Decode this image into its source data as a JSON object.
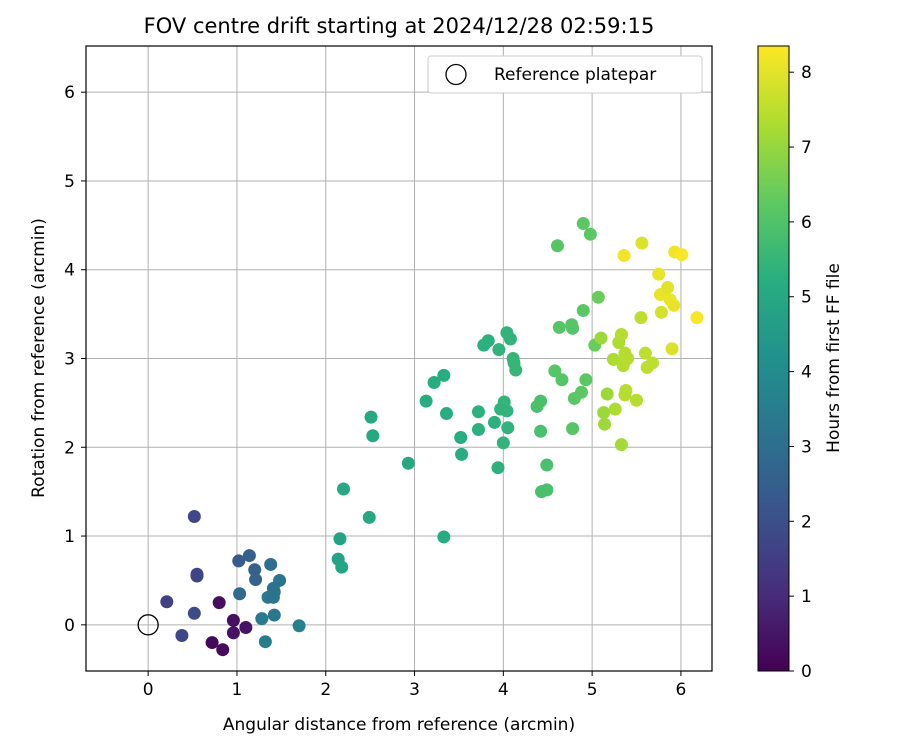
{
  "chart_data": {
    "type": "scatter",
    "title": "FOV centre drift starting at 2024/12/28 02:59:15",
    "xlabel": "Angular distance from reference (arcmin)",
    "ylabel": "Rotation from reference (arcmin)",
    "xlim": [
      -0.7,
      6.35
    ],
    "ylim": [
      -0.52,
      6.52
    ],
    "xticks": [
      "0",
      "1",
      "2",
      "3",
      "4",
      "5",
      "6"
    ],
    "yticks": [
      "0",
      "1",
      "2",
      "3",
      "4",
      "5",
      "6"
    ],
    "grid": true,
    "legend": {
      "position": "top-right",
      "entries": [
        {
          "label": "Reference platepar",
          "marker": "open-circle"
        }
      ]
    },
    "reference_point": {
      "x": 0,
      "y": 0
    },
    "colorbar": {
      "label": "Hours from first FF file",
      "range": [
        0,
        8.35
      ],
      "ticks": [
        "0",
        "1",
        "2",
        "3",
        "4",
        "5",
        "6",
        "7",
        "8"
      ],
      "colormap": "viridis"
    },
    "points": [
      {
        "x": 0.8,
        "y": 0.25,
        "c": 0.3
      },
      {
        "x": 0.96,
        "y": 0.05,
        "c": 0.35
      },
      {
        "x": 0.96,
        "y": -0.09,
        "c": 0.4
      },
      {
        "x": 1.1,
        "y": -0.03,
        "c": 0.45
      },
      {
        "x": 0.72,
        "y": -0.2,
        "c": 0.2
      },
      {
        "x": 0.84,
        "y": -0.28,
        "c": 0.25
      },
      {
        "x": 0.52,
        "y": 1.22,
        "c": 1.8
      },
      {
        "x": 0.55,
        "y": 0.55,
        "c": 1.7
      },
      {
        "x": 0.55,
        "y": 0.57,
        "c": 1.7
      },
      {
        "x": 0.21,
        "y": 0.26,
        "c": 1.6
      },
      {
        "x": 0.52,
        "y": 0.13,
        "c": 1.9
      },
      {
        "x": 0.38,
        "y": -0.12,
        "c": 1.8
      },
      {
        "x": 1.02,
        "y": 0.72,
        "c": 2.4
      },
      {
        "x": 1.14,
        "y": 0.78,
        "c": 2.5
      },
      {
        "x": 1.2,
        "y": 0.62,
        "c": 2.6
      },
      {
        "x": 1.21,
        "y": 0.51,
        "c": 2.6
      },
      {
        "x": 1.03,
        "y": 0.35,
        "c": 2.9
      },
      {
        "x": 1.38,
        "y": 0.68,
        "c": 3.0
      },
      {
        "x": 1.48,
        "y": 0.5,
        "c": 3.2
      },
      {
        "x": 1.41,
        "y": 0.41,
        "c": 3.1
      },
      {
        "x": 1.42,
        "y": 0.37,
        "c": 3.2
      },
      {
        "x": 1.35,
        "y": 0.31,
        "c": 3.3
      },
      {
        "x": 1.41,
        "y": 0.31,
        "c": 3.2
      },
      {
        "x": 1.28,
        "y": 0.07,
        "c": 3.4
      },
      {
        "x": 1.42,
        "y": 0.11,
        "c": 3.3
      },
      {
        "x": 1.32,
        "y": -0.19,
        "c": 3.5
      },
      {
        "x": 1.7,
        "y": -0.01,
        "c": 3.6
      },
      {
        "x": 2.14,
        "y": 0.74,
        "c": 4.8
      },
      {
        "x": 2.18,
        "y": 0.65,
        "c": 4.9
      },
      {
        "x": 2.16,
        "y": 0.97,
        "c": 4.8
      },
      {
        "x": 2.2,
        "y": 1.53,
        "c": 5.0
      },
      {
        "x": 2.49,
        "y": 1.21,
        "c": 5.0
      },
      {
        "x": 2.51,
        "y": 2.34,
        "c": 5.0
      },
      {
        "x": 2.53,
        "y": 2.13,
        "c": 5.0
      },
      {
        "x": 2.93,
        "y": 1.82,
        "c": 5.0
      },
      {
        "x": 3.33,
        "y": 0.99,
        "c": 5.1
      },
      {
        "x": 3.13,
        "y": 2.52,
        "c": 5.2
      },
      {
        "x": 3.22,
        "y": 2.73,
        "c": 5.2
      },
      {
        "x": 3.33,
        "y": 2.81,
        "c": 5.2
      },
      {
        "x": 3.36,
        "y": 2.38,
        "c": 5.2
      },
      {
        "x": 3.52,
        "y": 2.11,
        "c": 5.2
      },
      {
        "x": 3.53,
        "y": 1.92,
        "c": 5.2
      },
      {
        "x": 3.72,
        "y": 2.4,
        "c": 5.3
      },
      {
        "x": 3.72,
        "y": 2.2,
        "c": 5.3
      },
      {
        "x": 3.78,
        "y": 3.15,
        "c": 5.3
      },
      {
        "x": 3.83,
        "y": 3.2,
        "c": 5.3
      },
      {
        "x": 3.9,
        "y": 2.28,
        "c": 5.3
      },
      {
        "x": 3.94,
        "y": 1.77,
        "c": 5.3
      },
      {
        "x": 3.95,
        "y": 3.1,
        "c": 5.4
      },
      {
        "x": 3.97,
        "y": 2.43,
        "c": 5.4
      },
      {
        "x": 4.0,
        "y": 2.05,
        "c": 5.4
      },
      {
        "x": 4.01,
        "y": 2.51,
        "c": 5.4
      },
      {
        "x": 4.04,
        "y": 3.29,
        "c": 5.4
      },
      {
        "x": 4.04,
        "y": 2.41,
        "c": 5.4
      },
      {
        "x": 4.05,
        "y": 2.22,
        "c": 5.4
      },
      {
        "x": 4.08,
        "y": 3.22,
        "c": 5.4
      },
      {
        "x": 4.11,
        "y": 3.0,
        "c": 5.5
      },
      {
        "x": 4.12,
        "y": 2.95,
        "c": 5.5
      },
      {
        "x": 4.14,
        "y": 2.87,
        "c": 5.5
      },
      {
        "x": 4.38,
        "y": 2.46,
        "c": 5.9
      },
      {
        "x": 4.42,
        "y": 2.52,
        "c": 5.9
      },
      {
        "x": 4.42,
        "y": 2.18,
        "c": 5.9
      },
      {
        "x": 4.43,
        "y": 1.5,
        "c": 5.9
      },
      {
        "x": 4.49,
        "y": 1.52,
        "c": 5.9
      },
      {
        "x": 4.49,
        "y": 1.8,
        "c": 5.9
      },
      {
        "x": 4.58,
        "y": 2.86,
        "c": 6.1
      },
      {
        "x": 4.61,
        "y": 4.27,
        "c": 6.1
      },
      {
        "x": 4.63,
        "y": 3.35,
        "c": 6.1
      },
      {
        "x": 4.66,
        "y": 2.76,
        "c": 6.1
      },
      {
        "x": 4.77,
        "y": 3.38,
        "c": 6.1
      },
      {
        "x": 4.78,
        "y": 3.34,
        "c": 6.1
      },
      {
        "x": 4.78,
        "y": 2.21,
        "c": 6.1
      },
      {
        "x": 4.8,
        "y": 2.55,
        "c": 6.2
      },
      {
        "x": 4.88,
        "y": 2.62,
        "c": 6.2
      },
      {
        "x": 4.9,
        "y": 4.52,
        "c": 6.2
      },
      {
        "x": 4.9,
        "y": 3.54,
        "c": 6.2
      },
      {
        "x": 4.93,
        "y": 2.76,
        "c": 6.2
      },
      {
        "x": 4.98,
        "y": 4.4,
        "c": 6.2
      },
      {
        "x": 5.03,
        "y": 3.15,
        "c": 6.4
      },
      {
        "x": 5.07,
        "y": 3.69,
        "c": 6.4
      },
      {
        "x": 5.1,
        "y": 3.23,
        "c": 7.1
      },
      {
        "x": 5.13,
        "y": 2.39,
        "c": 7.1
      },
      {
        "x": 5.14,
        "y": 2.26,
        "c": 7.1
      },
      {
        "x": 5.17,
        "y": 2.6,
        "c": 7.1
      },
      {
        "x": 5.24,
        "y": 2.99,
        "c": 7.3
      },
      {
        "x": 5.26,
        "y": 2.43,
        "c": 7.3
      },
      {
        "x": 5.3,
        "y": 3.18,
        "c": 7.3
      },
      {
        "x": 5.33,
        "y": 3.27,
        "c": 7.4
      },
      {
        "x": 5.33,
        "y": 2.03,
        "c": 7.2
      },
      {
        "x": 5.35,
        "y": 2.92,
        "c": 7.4
      },
      {
        "x": 5.36,
        "y": 2.96,
        "c": 7.4
      },
      {
        "x": 5.37,
        "y": 3.06,
        "c": 7.4
      },
      {
        "x": 5.37,
        "y": 2.59,
        "c": 7.4
      },
      {
        "x": 5.38,
        "y": 2.64,
        "c": 7.4
      },
      {
        "x": 5.4,
        "y": 3.0,
        "c": 7.4
      },
      {
        "x": 5.36,
        "y": 4.16,
        "c": 8.2
      },
      {
        "x": 5.5,
        "y": 2.53,
        "c": 7.4
      },
      {
        "x": 5.55,
        "y": 3.46,
        "c": 7.5
      },
      {
        "x": 5.56,
        "y": 4.3,
        "c": 7.9
      },
      {
        "x": 5.6,
        "y": 3.06,
        "c": 7.5
      },
      {
        "x": 5.62,
        "y": 2.9,
        "c": 7.5
      },
      {
        "x": 5.68,
        "y": 2.95,
        "c": 7.5
      },
      {
        "x": 5.75,
        "y": 3.95,
        "c": 8.1
      },
      {
        "x": 5.77,
        "y": 3.72,
        "c": 8.1
      },
      {
        "x": 5.78,
        "y": 3.52,
        "c": 7.8
      },
      {
        "x": 5.85,
        "y": 3.8,
        "c": 8.0
      },
      {
        "x": 5.88,
        "y": 3.66,
        "c": 8.1
      },
      {
        "x": 5.9,
        "y": 3.11,
        "c": 7.9
      },
      {
        "x": 5.92,
        "y": 3.6,
        "c": 8.1
      },
      {
        "x": 5.93,
        "y": 4.2,
        "c": 8.2
      },
      {
        "x": 6.01,
        "y": 4.17,
        "c": 8.3
      },
      {
        "x": 6.18,
        "y": 3.46,
        "c": 8.3
      }
    ]
  }
}
